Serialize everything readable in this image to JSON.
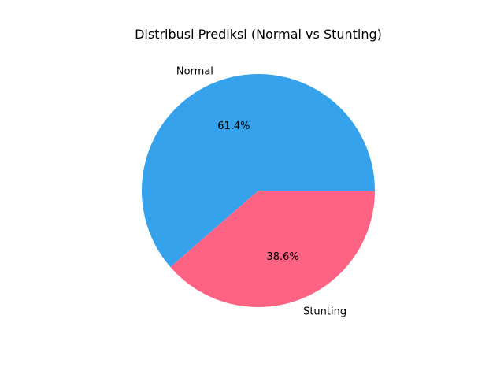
{
  "chart_data": {
    "type": "pie",
    "title": "Distribusi Prediksi (Normal vs Stunting)",
    "categories": [
      "Normal",
      "Stunting"
    ],
    "values": [
      61.4,
      38.6
    ],
    "percent_labels": [
      "61.4%",
      "38.6%"
    ],
    "colors": [
      "#36a2eb",
      "#ff6384"
    ],
    "start_angle_deg": 0,
    "direction": "counterclockwise",
    "legend": "none"
  }
}
